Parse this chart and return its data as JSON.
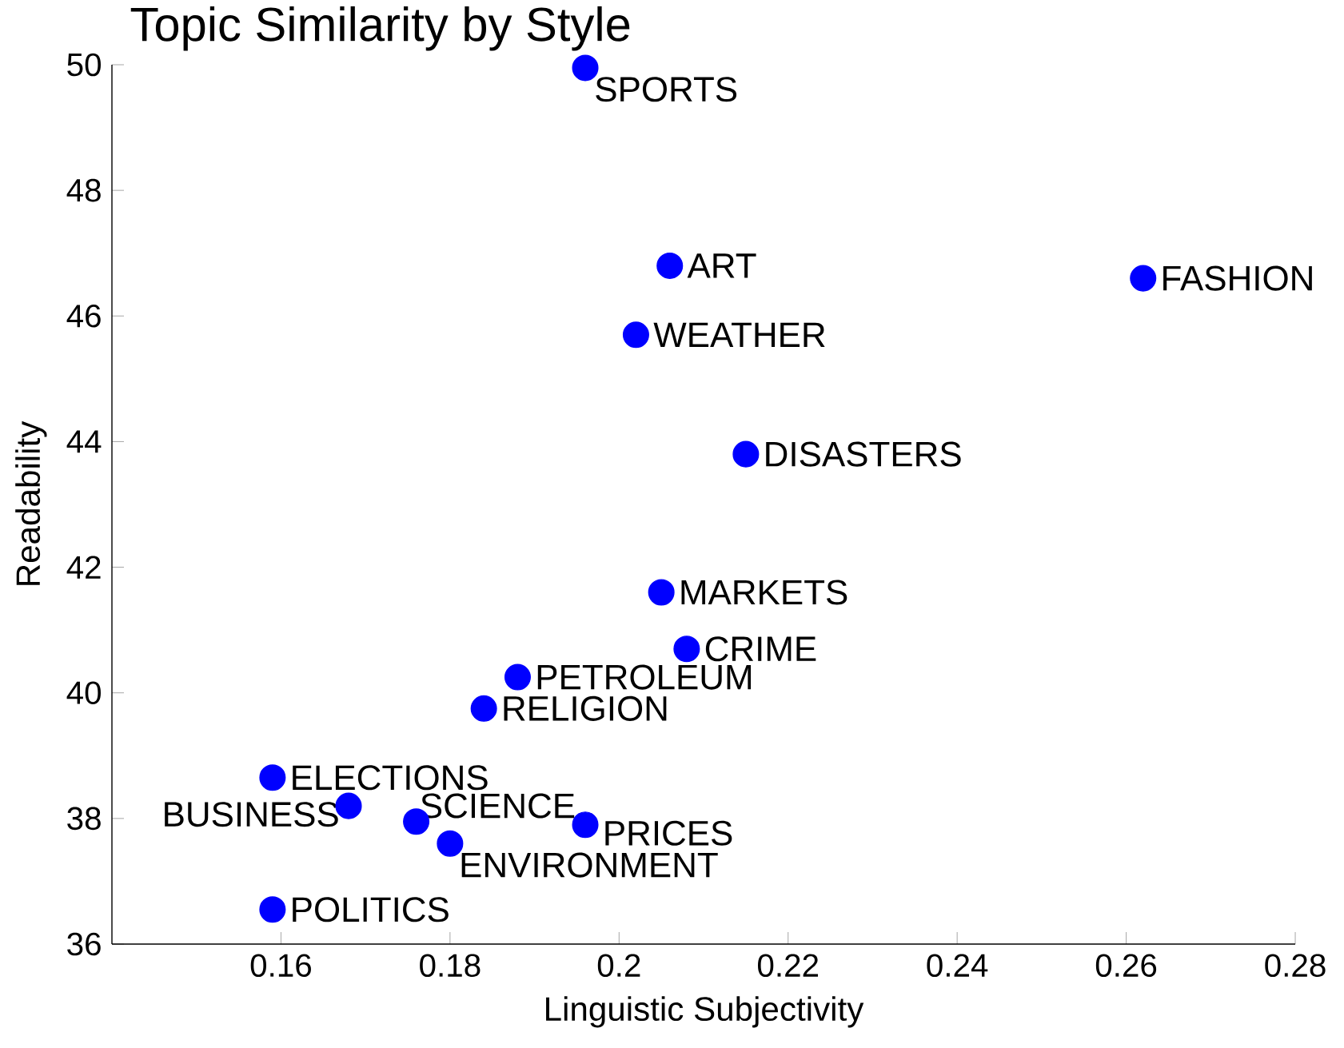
{
  "chart_data": {
    "type": "scatter",
    "title": "Topic Similarity by Style",
    "xlabel": "Linguistic Subjectivity",
    "ylabel": "Readability",
    "x": [
      0.196,
      0.206,
      0.262,
      0.202,
      0.215,
      0.205,
      0.208,
      0.188,
      0.184,
      0.159,
      0.168,
      0.176,
      0.196,
      0.18,
      0.159
    ],
    "series": [
      {
        "color": "#0000ff",
        "values": [
          49.95,
          46.8,
          46.6,
          45.7,
          43.8,
          41.6,
          40.7,
          40.25,
          39.75,
          38.65,
          38.2,
          37.95,
          37.9,
          37.6,
          36.55
        ]
      }
    ],
    "annotations": [
      {
        "text": "SPORTS",
        "x": 0.196,
        "y": 49.95
      },
      {
        "text": "ART",
        "x": 0.206,
        "y": 46.8
      },
      {
        "text": "FASHION",
        "x": 0.262,
        "y": 46.6
      },
      {
        "text": "WEATHER",
        "x": 0.202,
        "y": 45.7
      },
      {
        "text": "DISASTERS",
        "x": 0.215,
        "y": 43.8
      },
      {
        "text": "MARKETS",
        "x": 0.205,
        "y": 41.6
      },
      {
        "text": "CRIME",
        "x": 0.208,
        "y": 40.7
      },
      {
        "text": "PETROLEUM",
        "x": 0.188,
        "y": 40.25
      },
      {
        "text": "RELIGION",
        "x": 0.184,
        "y": 39.75
      },
      {
        "text": "ELECTIONS",
        "x": 0.159,
        "y": 38.65
      },
      {
        "text": "BUSINESS",
        "x": 0.168,
        "y": 38.2
      },
      {
        "text": "SCIENCE",
        "x": 0.176,
        "y": 37.95
      },
      {
        "text": "PRICES",
        "x": 0.196,
        "y": 37.9
      },
      {
        "text": "ENVIRONMENT",
        "x": 0.18,
        "y": 37.6
      },
      {
        "text": "POLITICS",
        "x": 0.159,
        "y": 36.55
      }
    ],
    "xlim": [
      0.14,
      0.28
    ],
    "ylim": [
      36,
      50
    ],
    "xticks": [
      0.16,
      0.18,
      0.2,
      0.22,
      0.24,
      0.26,
      0.28
    ],
    "yticks": [
      36,
      38,
      40,
      42,
      44,
      46,
      48,
      50
    ],
    "marker": "circle"
  }
}
